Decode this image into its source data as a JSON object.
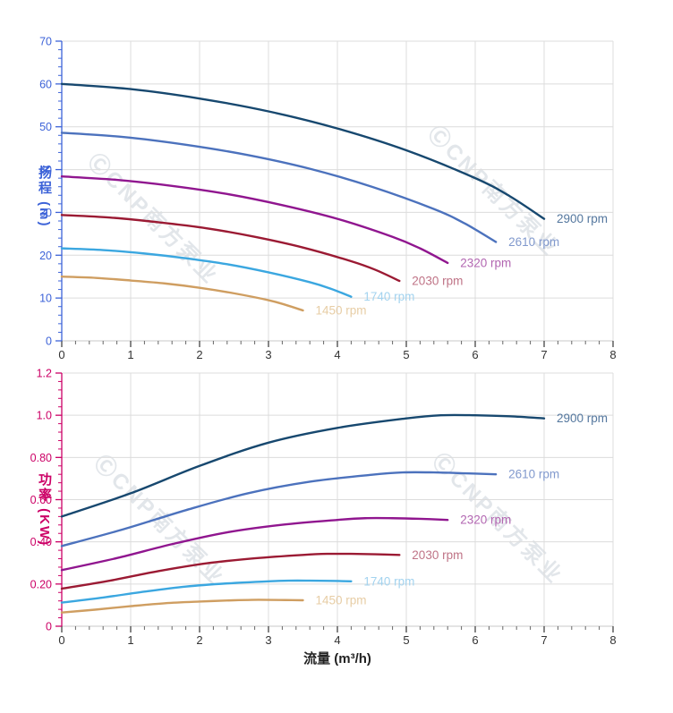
{
  "watermark": {
    "text": "ⒸCNP南方泵业"
  },
  "chart_data": [
    {
      "type": "line",
      "title": "",
      "xlabel": "流量 (m³/h)",
      "ylabel": "扬程 (m)",
      "xlim": [
        0,
        8
      ],
      "ylim": [
        0,
        70
      ],
      "x_major": 1,
      "x_minor": 0.2,
      "y_major": 10,
      "y_minor": 2,
      "grid": true,
      "axis_color": "#3d63d8",
      "x_ticks": [
        [
          0,
          "0"
        ],
        [
          1,
          "1"
        ],
        [
          2,
          "2"
        ],
        [
          3,
          "3"
        ],
        [
          4,
          "4"
        ],
        [
          5,
          "5"
        ],
        [
          6,
          "6"
        ],
        [
          7,
          "7"
        ],
        [
          8,
          "8"
        ]
      ],
      "y_ticks": [
        [
          0,
          "0"
        ],
        [
          10,
          "10"
        ],
        [
          20,
          "20"
        ],
        [
          30,
          "30"
        ],
        [
          40,
          "40"
        ],
        [
          50,
          "50"
        ],
        [
          60,
          "60"
        ],
        [
          70,
          "70"
        ]
      ],
      "legend_position": "end-of-curve",
      "series": [
        {
          "name": "2900 rpm",
          "color": "#17486f",
          "label_color": "#54779e",
          "points": [
            [
              0,
              60
            ],
            [
              1,
              58.8
            ],
            [
              2,
              56.6
            ],
            [
              3,
              53.6
            ],
            [
              4,
              49.6
            ],
            [
              5,
              44.5
            ],
            [
              6,
              38.0
            ],
            [
              6.5,
              33.8
            ],
            [
              7,
              28.5
            ]
          ]
        },
        {
          "name": "2610 rpm",
          "color": "#4c72bd",
          "label_color": "#8199cd",
          "points": [
            [
              0,
              48.6
            ],
            [
              0.9,
              47.6
            ],
            [
              1.8,
              45.8
            ],
            [
              2.7,
              43.4
            ],
            [
              3.6,
              40.2
            ],
            [
              4.5,
              36.0
            ],
            [
              5.4,
              30.8
            ],
            [
              5.85,
              27.4
            ],
            [
              6.3,
              23.1
            ]
          ]
        },
        {
          "name": "2320 rpm",
          "color": "#90168f",
          "label_color": "#b266b1",
          "points": [
            [
              0,
              38.4
            ],
            [
              0.8,
              37.6
            ],
            [
              1.6,
              36.2
            ],
            [
              2.4,
              34.3
            ],
            [
              3.2,
              31.7
            ],
            [
              4,
              28.5
            ],
            [
              4.8,
              24.3
            ],
            [
              5.2,
              21.6
            ],
            [
              5.6,
              18.2
            ]
          ]
        },
        {
          "name": "2030 rpm",
          "color": "#9b1a33",
          "label_color": "#bf7386",
          "points": [
            [
              0,
              29.4
            ],
            [
              0.7,
              28.8
            ],
            [
              1.4,
              27.7
            ],
            [
              2.1,
              26.3
            ],
            [
              2.8,
              24.3
            ],
            [
              3.5,
              21.8
            ],
            [
              4.2,
              18.6
            ],
            [
              4.55,
              16.6
            ],
            [
              4.9,
              14.0
            ]
          ]
        },
        {
          "name": "1740 rpm",
          "color": "#3ba7e0",
          "label_color": "#a3d3ef",
          "points": [
            [
              0,
              21.6
            ],
            [
              0.6,
              21.2
            ],
            [
              1.2,
              20.4
            ],
            [
              1.8,
              19.3
            ],
            [
              2.4,
              17.9
            ],
            [
              3,
              16.0
            ],
            [
              3.6,
              13.7
            ],
            [
              3.9,
              12.2
            ],
            [
              4.2,
              10.3
            ]
          ]
        },
        {
          "name": "1450 rpm",
          "color": "#cf9e61",
          "label_color": "#e7cda5",
          "points": [
            [
              0,
              15.0
            ],
            [
              0.5,
              14.7
            ],
            [
              1,
              14.1
            ],
            [
              1.5,
              13.4
            ],
            [
              2,
              12.4
            ],
            [
              2.5,
              11.1
            ],
            [
              3,
              9.5
            ],
            [
              3.25,
              8.4
            ],
            [
              3.5,
              7.1
            ]
          ]
        }
      ]
    },
    {
      "type": "line",
      "title": "",
      "xlabel": "流量 (m³/h)",
      "ylabel": "功率 (KW)",
      "xlim": [
        0,
        8
      ],
      "ylim": [
        0,
        1.2
      ],
      "x_major": 1,
      "x_minor": 0.2,
      "y_major": 0.2,
      "y_minor": 0.04,
      "grid": true,
      "axis_color": "#cc0066",
      "x_ticks": [
        [
          0,
          "0"
        ],
        [
          1,
          "1"
        ],
        [
          2,
          "2"
        ],
        [
          3,
          "3"
        ],
        [
          4,
          "4"
        ],
        [
          5,
          "5"
        ],
        [
          6,
          "6"
        ],
        [
          7,
          "7"
        ],
        [
          8,
          "8"
        ]
      ],
      "y_ticks": [
        [
          0,
          "0"
        ],
        [
          0.2,
          "0.20"
        ],
        [
          0.4,
          "0.40"
        ],
        [
          0.6,
          "0.60"
        ],
        [
          0.8,
          "0.80"
        ],
        [
          1.0,
          "1.0"
        ],
        [
          1.2,
          "1.2"
        ]
      ],
      "legend_position": "end-of-curve",
      "series": [
        {
          "name": "2900 rpm",
          "color": "#17486f",
          "label_color": "#54779e",
          "points": [
            [
              0,
              0.52
            ],
            [
              1,
              0.63
            ],
            [
              2,
              0.76
            ],
            [
              3,
              0.87
            ],
            [
              4,
              0.94
            ],
            [
              5,
              0.985
            ],
            [
              5.5,
              1.0
            ],
            [
              6,
              1.0
            ],
            [
              6.5,
              0.995
            ],
            [
              7,
              0.985
            ]
          ]
        },
        {
          "name": "2610 rpm",
          "color": "#4c72bd",
          "label_color": "#8199cd",
          "points": [
            [
              0,
              0.38
            ],
            [
              0.9,
              0.46
            ],
            [
              1.8,
              0.55
            ],
            [
              2.7,
              0.63
            ],
            [
              3.6,
              0.685
            ],
            [
              4.5,
              0.718
            ],
            [
              4.95,
              0.729
            ],
            [
              5.4,
              0.729
            ],
            [
              5.85,
              0.725
            ],
            [
              6.3,
              0.72
            ]
          ]
        },
        {
          "name": "2320 rpm",
          "color": "#90168f",
          "label_color": "#b266b1",
          "points": [
            [
              0,
              0.266
            ],
            [
              0.8,
              0.323
            ],
            [
              1.6,
              0.389
            ],
            [
              2.4,
              0.445
            ],
            [
              3.2,
              0.481
            ],
            [
              4,
              0.504
            ],
            [
              4.4,
              0.512
            ],
            [
              4.8,
              0.512
            ],
            [
              5.2,
              0.509
            ],
            [
              5.6,
              0.504
            ]
          ]
        },
        {
          "name": "2030 rpm",
          "color": "#9b1a33",
          "label_color": "#bf7386",
          "points": [
            [
              0,
              0.178
            ],
            [
              0.7,
              0.216
            ],
            [
              1.4,
              0.261
            ],
            [
              2.1,
              0.298
            ],
            [
              2.8,
              0.322
            ],
            [
              3.5,
              0.338
            ],
            [
              3.85,
              0.343
            ],
            [
              4.2,
              0.343
            ],
            [
              4.55,
              0.341
            ],
            [
              4.9,
              0.338
            ]
          ]
        },
        {
          "name": "1740 rpm",
          "color": "#3ba7e0",
          "label_color": "#a3d3ef",
          "points": [
            [
              0,
              0.112
            ],
            [
              0.6,
              0.136
            ],
            [
              1.2,
              0.164
            ],
            [
              1.8,
              0.188
            ],
            [
              2.4,
              0.203
            ],
            [
              3,
              0.213
            ],
            [
              3.3,
              0.216
            ],
            [
              3.6,
              0.216
            ],
            [
              3.9,
              0.215
            ],
            [
              4.2,
              0.213
            ]
          ]
        },
        {
          "name": "1450 rpm",
          "color": "#cf9e61",
          "label_color": "#e7cda5",
          "points": [
            [
              0,
              0.065
            ],
            [
              0.5,
              0.079
            ],
            [
              1,
              0.095
            ],
            [
              1.5,
              0.109
            ],
            [
              2,
              0.117
            ],
            [
              2.5,
              0.123
            ],
            [
              2.75,
              0.125
            ],
            [
              3,
              0.125
            ],
            [
              3.25,
              0.124
            ],
            [
              3.5,
              0.123
            ]
          ]
        }
      ]
    }
  ]
}
